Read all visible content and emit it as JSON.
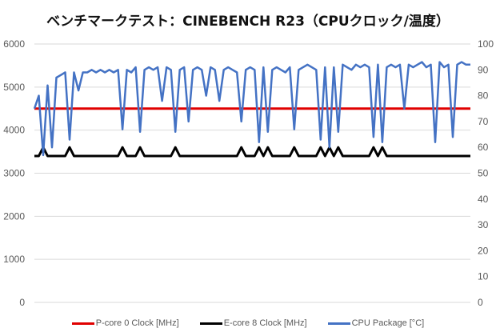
{
  "chart_data": {
    "type": "line",
    "title": "ベンチマークテスト：CINEBENCH R23（CPUクロック/温度）",
    "xlabel": "",
    "ylabel": "",
    "y2label": "",
    "ylim": [
      0,
      6000
    ],
    "y_ticks": [
      "0",
      "1000",
      "2000",
      "3000",
      "4000",
      "5000",
      "6000"
    ],
    "y2lim": [
      0,
      100
    ],
    "y2_ticks": [
      "0",
      "10",
      "20",
      "30",
      "40",
      "50",
      "60",
      "70",
      "80",
      "90",
      "100"
    ],
    "grid": true,
    "legend_position": "bottom",
    "series": [
      {
        "name": "P-core 0 Clock [MHz]",
        "axis": "left",
        "color": "#e00000",
        "values": [
          4500,
          4500,
          4500,
          4500,
          4500,
          4500,
          4500,
          4500,
          4500,
          4500,
          4500,
          4500,
          4500,
          4500,
          4500,
          4500,
          4500,
          4500,
          4500,
          4500,
          4500,
          4500,
          4500,
          4500,
          4500,
          4500,
          4500,
          4500,
          4500,
          4500,
          4500,
          4500,
          4500,
          4500,
          4500,
          4500,
          4500,
          4500,
          4500,
          4500,
          4500,
          4500,
          4500,
          4500,
          4500,
          4500,
          4500,
          4500,
          4500,
          4500,
          4500,
          4500,
          4500,
          4500,
          4500,
          4500,
          4500,
          4500,
          4500,
          4500,
          4500,
          4500,
          4500,
          4500,
          4500,
          4500,
          4500,
          4500,
          4500,
          4500,
          4500,
          4500,
          4500,
          4500,
          4500,
          4500,
          4500,
          4500,
          4500,
          4500,
          4500,
          4500,
          4500,
          4500,
          4500,
          4500,
          4500,
          4500,
          4500,
          4500,
          4500,
          4500,
          4500,
          4500,
          4500,
          4500,
          4500,
          4500,
          4500,
          4500
        ]
      },
      {
        "name": "E-core 8 Clock [MHz]",
        "axis": "left",
        "color": "#000000",
        "values": [
          3400,
          3400,
          3600,
          3400,
          3400,
          3400,
          3400,
          3400,
          3600,
          3400,
          3400,
          3400,
          3400,
          3400,
          3400,
          3400,
          3400,
          3400,
          3400,
          3400,
          3600,
          3400,
          3400,
          3400,
          3600,
          3400,
          3400,
          3400,
          3400,
          3400,
          3400,
          3400,
          3600,
          3400,
          3400,
          3400,
          3400,
          3400,
          3400,
          3400,
          3400,
          3400,
          3400,
          3400,
          3400,
          3400,
          3400,
          3600,
          3400,
          3400,
          3400,
          3600,
          3400,
          3600,
          3400,
          3400,
          3400,
          3400,
          3400,
          3600,
          3400,
          3400,
          3400,
          3400,
          3400,
          3600,
          3400,
          3600,
          3400,
          3600,
          3400,
          3400,
          3400,
          3400,
          3400,
          3400,
          3400,
          3600,
          3400,
          3600,
          3400,
          3400,
          3400,
          3400,
          3400,
          3400,
          3400,
          3400,
          3400,
          3400,
          3400,
          3400,
          3400,
          3400,
          3400,
          3400,
          3400,
          3400,
          3400,
          3400
        ]
      },
      {
        "name": "CPU Package [°C]",
        "axis": "right",
        "color": "#4472c4",
        "values": [
          75,
          80,
          57,
          84,
          60,
          87,
          88,
          89,
          63,
          89,
          82,
          89,
          89,
          90,
          89,
          90,
          89,
          90,
          89,
          90,
          67,
          90,
          89,
          91,
          66,
          90,
          91,
          90,
          91,
          78,
          91,
          90,
          66,
          90,
          91,
          70,
          90,
          91,
          90,
          80,
          91,
          90,
          78,
          90,
          91,
          90,
          89,
          70,
          90,
          91,
          90,
          62,
          91,
          66,
          90,
          91,
          90,
          89,
          91,
          67,
          90,
          91,
          92,
          91,
          90,
          63,
          91,
          60,
          91,
          66,
          92,
          91,
          90,
          92,
          91,
          92,
          91,
          64,
          92,
          62,
          91,
          92,
          91,
          92,
          75,
          92,
          91,
          92,
          93,
          91,
          92,
          62,
          93,
          91,
          92,
          64,
          92,
          93,
          92,
          92
        ]
      }
    ]
  }
}
